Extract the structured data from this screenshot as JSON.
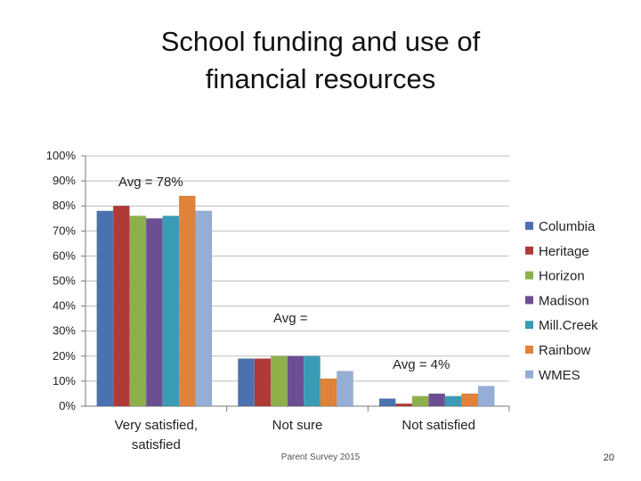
{
  "slide": {
    "title_line1": "School funding and use of",
    "title_line2": "financial resources",
    "footer": "Parent Survey 2015",
    "page_number": "20"
  },
  "chart_data": {
    "type": "bar",
    "categories": [
      "Very satisfied, satisfied",
      "Not sure",
      "Not satisfied"
    ],
    "category_lines": [
      [
        "Very satisfied,",
        "satisfied"
      ],
      [
        "Not sure"
      ],
      [
        "Not satisfied"
      ]
    ],
    "ylim": [
      0,
      100
    ],
    "yticks": [
      0,
      10,
      20,
      30,
      40,
      50,
      60,
      70,
      80,
      90,
      100
    ],
    "ytick_labels": [
      "0%",
      "10%",
      "20%",
      "30%",
      "40%",
      "50%",
      "60%",
      "70%",
      "80%",
      "90%",
      "100%"
    ],
    "grid": true,
    "legend_position": "right",
    "series": [
      {
        "name": "Columbia",
        "color": "#4a72b0",
        "values": [
          78,
          19,
          3
        ]
      },
      {
        "name": "Heritage",
        "color": "#b03a38",
        "values": [
          80,
          19,
          1
        ]
      },
      {
        "name": "Horizon",
        "color": "#8db04a",
        "values": [
          76,
          20,
          4
        ]
      },
      {
        "name": "Madison",
        "color": "#6c4f92",
        "values": [
          75,
          20,
          5
        ]
      },
      {
        "name": "Mill.Creek",
        "color": "#3a9bb5",
        "values": [
          76,
          20,
          4
        ]
      },
      {
        "name": "Rainbow",
        "color": "#e0823a",
        "values": [
          84,
          11,
          5
        ]
      },
      {
        "name": "WMES",
        "color": "#94aed6",
        "values": [
          78,
          14,
          8
        ]
      }
    ],
    "annotations": [
      "Avg = 78%",
      "Avg =",
      "Avg = 4%"
    ]
  }
}
